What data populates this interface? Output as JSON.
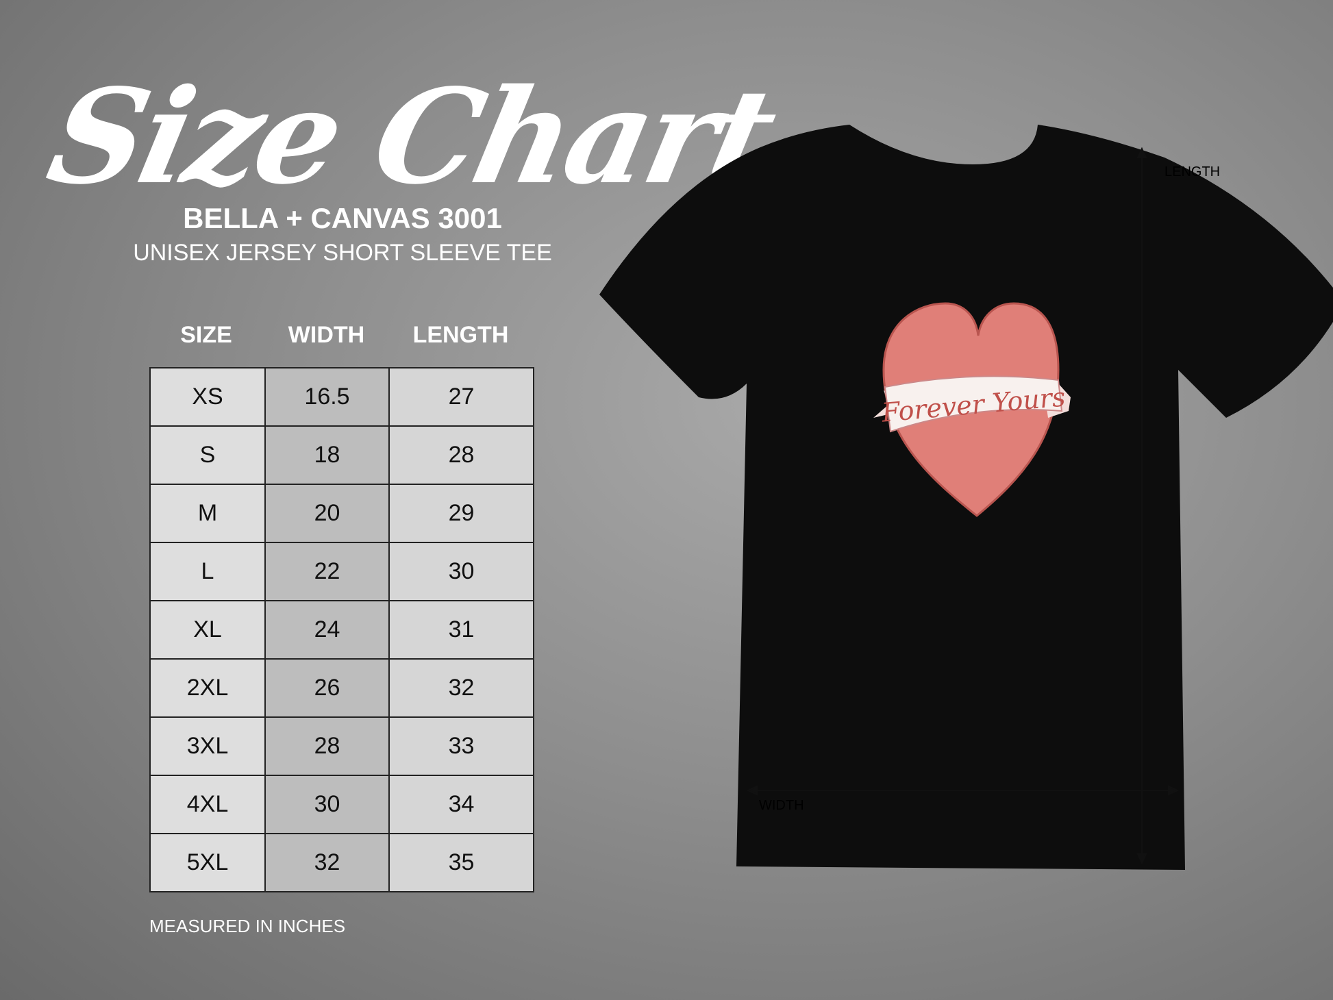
{
  "title": "Size Chart",
  "brand": "BELLA + CANVAS 3001",
  "subtitle": "UNISEX JERSEY SHORT SLEEVE TEE",
  "table": {
    "headers": [
      "SIZE",
      "WIDTH",
      "LENGTH"
    ],
    "rows": [
      [
        "XS",
        "16.5",
        "27"
      ],
      [
        "S",
        "18",
        "28"
      ],
      [
        "M",
        "20",
        "29"
      ],
      [
        "L",
        "22",
        "30"
      ],
      [
        "XL",
        "24",
        "31"
      ],
      [
        "2XL",
        "26",
        "32"
      ],
      [
        "3XL",
        "28",
        "33"
      ],
      [
        "4XL",
        "30",
        "34"
      ],
      [
        "5XL",
        "32",
        "35"
      ]
    ]
  },
  "note": "MEASURED IN INCHES",
  "shirt": {
    "color": "#0d0d0d",
    "print_text": "Forever Yours",
    "length_label": "LENGTH",
    "width_label": "WIDTH"
  }
}
